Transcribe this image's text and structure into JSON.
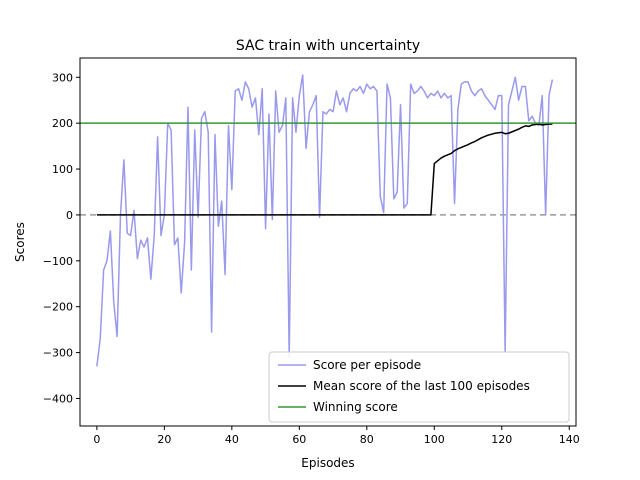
{
  "chart_data": {
    "type": "line",
    "title": "SAC train with uncertainty",
    "xlabel": "Episodes",
    "ylabel": "Scores",
    "xlim": [
      -5,
      142
    ],
    "ylim": [
      -460,
      342
    ],
    "xticks": [
      0,
      20,
      40,
      60,
      80,
      100,
      120,
      140
    ],
    "yticks": [
      -400,
      -300,
      -200,
      -100,
      0,
      100,
      200,
      300
    ],
    "tick_labels_x": [
      "0",
      "20",
      "40",
      "60",
      "80",
      "100",
      "120",
      "140"
    ],
    "tick_labels_y": [
      "−400",
      "−300",
      "−200",
      "−100",
      "0",
      "100",
      "200",
      "300"
    ],
    "legend_position": "lower-right",
    "grid": false,
    "zero_line": {
      "y": 0,
      "color": "#999999",
      "style": "dashed"
    },
    "series": [
      {
        "name": "Score per episode",
        "color": "#9999ee",
        "x": [
          0,
          1,
          2,
          3,
          4,
          5,
          6,
          7,
          8,
          9,
          10,
          11,
          12,
          13,
          14,
          15,
          16,
          17,
          18,
          19,
          20,
          21,
          22,
          23,
          24,
          25,
          26,
          27,
          28,
          29,
          30,
          31,
          32,
          33,
          34,
          35,
          36,
          37,
          38,
          39,
          40,
          41,
          42,
          43,
          44,
          45,
          46,
          47,
          48,
          49,
          50,
          51,
          52,
          53,
          54,
          55,
          56,
          57,
          58,
          59,
          60,
          61,
          62,
          63,
          64,
          65,
          66,
          67,
          68,
          69,
          70,
          71,
          72,
          73,
          74,
          75,
          76,
          77,
          78,
          79,
          80,
          81,
          82,
          83,
          84,
          85,
          86,
          87,
          88,
          89,
          90,
          91,
          92,
          93,
          94,
          95,
          96,
          97,
          98,
          99,
          100,
          101,
          102,
          103,
          104,
          105,
          106,
          107,
          108,
          109,
          110,
          111,
          112,
          113,
          114,
          115,
          116,
          117,
          118,
          119,
          120,
          121,
          122,
          123,
          124,
          125,
          126,
          127,
          128,
          129,
          130,
          131,
          132,
          133,
          134,
          135
        ],
        "values": [
          -330,
          -270,
          -120,
          -100,
          -35,
          -190,
          -265,
          0,
          120,
          -40,
          -45,
          10,
          -95,
          -55,
          -70,
          -50,
          -140,
          -45,
          170,
          -45,
          0,
          200,
          185,
          -65,
          -50,
          -170,
          -60,
          235,
          -120,
          185,
          -5,
          210,
          225,
          180,
          -255,
          175,
          -25,
          30,
          -130,
          195,
          55,
          270,
          275,
          250,
          290,
          275,
          235,
          255,
          175,
          275,
          -30,
          220,
          -10,
          270,
          180,
          195,
          255,
          -310,
          255,
          180,
          260,
          305,
          145,
          225,
          240,
          260,
          -5,
          225,
          220,
          230,
          225,
          270,
          240,
          255,
          225,
          265,
          275,
          270,
          280,
          265,
          285,
          275,
          280,
          270,
          40,
          5,
          285,
          255,
          35,
          50,
          240,
          15,
          25,
          285,
          265,
          270,
          280,
          270,
          255,
          265,
          260,
          270,
          255,
          265,
          255,
          260,
          25,
          230,
          285,
          290,
          290,
          270,
          260,
          270,
          275,
          260,
          250,
          240,
          230,
          260,
          260,
          -300,
          240,
          270,
          300,
          250,
          280,
          280,
          205,
          215,
          200,
          195,
          260,
          0,
          260,
          295
        ],
        "line_width": 1.5
      },
      {
        "name": "Mean score of the last 100 episodes",
        "color": "#000000",
        "x": [
          0,
          99,
          100,
          101,
          102,
          103,
          104,
          105,
          106,
          107,
          108,
          109,
          110,
          111,
          112,
          113,
          114,
          115,
          116,
          117,
          118,
          119,
          120,
          121,
          122,
          123,
          124,
          125,
          126,
          127,
          128,
          129,
          130,
          131,
          132,
          133,
          134,
          135
        ],
        "values": [
          0,
          0,
          112,
          118,
          124,
          128,
          131,
          134,
          140,
          144,
          147,
          150,
          153,
          157,
          160,
          164,
          168,
          171,
          174,
          176,
          178,
          179,
          180,
          177,
          178,
          181,
          184,
          187,
          191,
          194,
          193,
          196,
          197,
          198,
          196,
          197,
          198,
          198
        ],
        "line_width": 1.5
      },
      {
        "name": "Winning score",
        "color": "#339933",
        "x": [
          -5,
          142
        ],
        "values": [
          200,
          200
        ],
        "line_width": 1.5
      }
    ]
  }
}
